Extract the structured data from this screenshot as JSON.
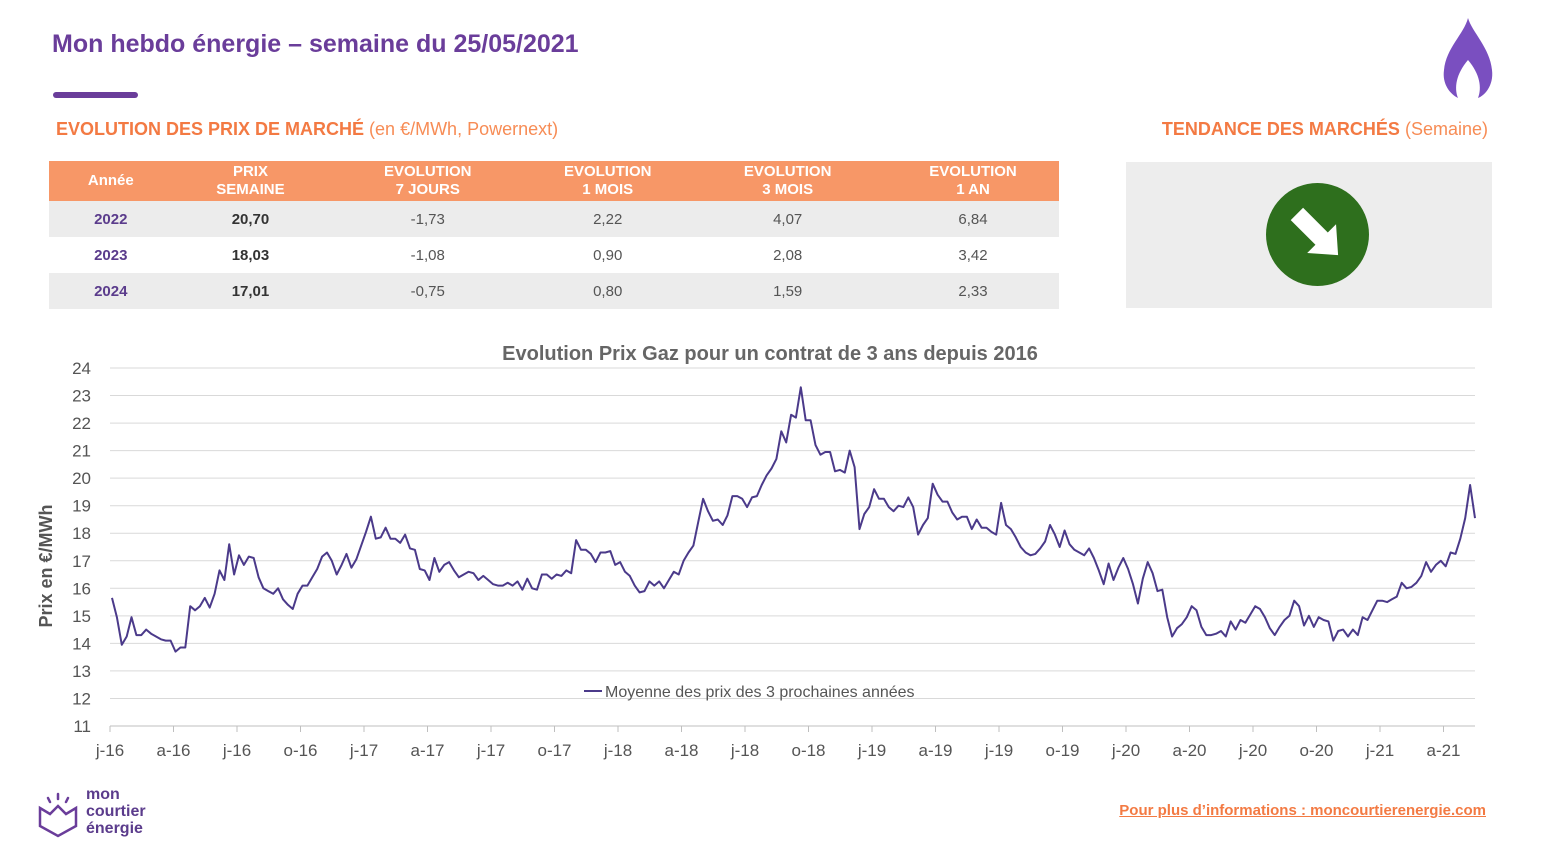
{
  "header": {
    "title": "Mon hebdo énergie – semaine du 25/05/2021",
    "accent_color": "#6a3d9a"
  },
  "section_market": {
    "label_bold": "EVOLUTION DES PRIX DE MARCHÉ",
    "label_sub": "(en €/MWh, Powernext)"
  },
  "section_trend": {
    "label_bold": "TENDANCE DES MARCHÉS",
    "label_sub": "(Semaine)",
    "trend_direction": "down",
    "trend_color": "#2e6f1d"
  },
  "table": {
    "headers": [
      [
        "Année"
      ],
      [
        "PRIX",
        "SEMAINE"
      ],
      [
        "EVOLUTION",
        "7 JOURS"
      ],
      [
        "EVOLUTION",
        "1 MOIS"
      ],
      [
        "EVOLUTION",
        "3 MOIS"
      ],
      [
        "EVOLUTION",
        "1 AN"
      ]
    ],
    "rows": [
      [
        "2022",
        "20,70",
        "-1,73",
        "2,22",
        "4,07",
        "6,84"
      ],
      [
        "2023",
        "18,03",
        "-1,08",
        "0,90",
        "2,08",
        "3,42"
      ],
      [
        "2024",
        "17,01",
        "-0,75",
        "0,80",
        "1,59",
        "2,33"
      ]
    ],
    "header_color": "#f79767"
  },
  "chart_data": {
    "type": "line",
    "title": "Evolution Prix Gaz pour un contrat de 3 ans depuis 2016",
    "ylabel": "Prix en €/MWh",
    "xlabel": "",
    "ylim": [
      11,
      24
    ],
    "yticks": [
      11,
      12,
      13,
      14,
      15,
      16,
      17,
      18,
      19,
      20,
      21,
      22,
      23,
      24
    ],
    "xtick_labels": [
      "j-16",
      "a-16",
      "j-16",
      "o-16",
      "j-17",
      "a-17",
      "j-17",
      "o-17",
      "j-18",
      "a-18",
      "j-18",
      "o-18",
      "j-19",
      "a-19",
      "j-19",
      "o-19",
      "j-20",
      "a-20",
      "j-20",
      "o-20",
      "j-21",
      "a-21"
    ],
    "grid": true,
    "legend_position": "bottom-center",
    "series": [
      {
        "name": "Moyenne des prix des 3 prochaines années",
        "color": "#4b3a8a",
        "values": [
          15.65,
          14.95,
          13.95,
          14.25,
          14.95,
          14.3,
          14.3,
          14.5,
          14.35,
          14.25,
          14.15,
          14.1,
          14.1,
          13.7,
          13.85,
          13.85,
          15.35,
          15.2,
          15.35,
          15.65,
          15.3,
          15.8,
          16.65,
          16.3,
          17.6,
          16.5,
          17.2,
          16.85,
          17.15,
          17.1,
          16.4,
          16.0,
          15.9,
          15.8,
          16.0,
          15.6,
          15.4,
          15.25,
          15.8,
          16.1,
          16.1,
          16.4,
          16.7,
          17.15,
          17.3,
          17.0,
          16.5,
          16.85,
          17.25,
          16.75,
          17.05,
          17.55,
          18.05,
          18.6,
          17.8,
          17.85,
          18.2,
          17.8,
          17.8,
          17.65,
          17.95,
          17.45,
          17.4,
          16.7,
          16.65,
          16.3,
          17.1,
          16.6,
          16.85,
          16.95,
          16.65,
          16.4,
          16.5,
          16.6,
          16.55,
          16.3,
          16.45,
          16.3,
          16.15,
          16.1,
          16.1,
          16.2,
          16.1,
          16.25,
          15.95,
          16.35,
          16.0,
          15.95,
          16.5,
          16.5,
          16.35,
          16.5,
          16.45,
          16.65,
          16.55,
          17.75,
          17.4,
          17.4,
          17.25,
          16.95,
          17.3,
          17.3,
          17.35,
          16.85,
          16.95,
          16.6,
          16.45,
          16.1,
          15.85,
          15.9,
          16.25,
          16.1,
          16.25,
          16.0,
          16.3,
          16.6,
          16.5,
          17.0,
          17.3,
          17.55,
          18.4,
          19.25,
          18.8,
          18.45,
          18.5,
          18.3,
          18.65,
          19.35,
          19.35,
          19.25,
          18.95,
          19.3,
          19.35,
          19.75,
          20.1,
          20.35,
          20.7,
          21.7,
          21.3,
          22.3,
          22.2,
          23.3,
          22.1,
          22.1,
          21.2,
          20.85,
          20.95,
          20.95,
          20.25,
          20.3,
          20.2,
          21.0,
          20.4,
          18.15,
          18.7,
          18.95,
          19.6,
          19.25,
          19.25,
          18.95,
          18.8,
          19.0,
          18.95,
          19.3,
          18.95,
          17.95,
          18.3,
          18.55,
          19.8,
          19.4,
          19.15,
          19.15,
          18.75,
          18.5,
          18.6,
          18.6,
          18.15,
          18.5,
          18.2,
          18.2,
          18.05,
          17.95,
          19.1,
          18.3,
          18.15,
          17.85,
          17.5,
          17.3,
          17.2,
          17.25,
          17.45,
          17.7,
          18.3,
          17.95,
          17.5,
          18.1,
          17.6,
          17.4,
          17.3,
          17.2,
          17.45,
          17.1,
          16.65,
          16.15,
          16.9,
          16.3,
          16.75,
          17.1,
          16.7,
          16.15,
          15.45,
          16.35,
          16.95,
          16.55,
          15.9,
          15.95,
          14.95,
          14.25,
          14.55,
          14.7,
          14.95,
          15.35,
          15.2,
          14.6,
          14.3,
          14.3,
          14.35,
          14.45,
          14.25,
          14.8,
          14.5,
          14.85,
          14.75,
          15.05,
          15.35,
          15.25,
          14.95,
          14.55,
          14.3,
          14.6,
          14.85,
          15.0,
          15.55,
          15.35,
          14.65,
          15.0,
          14.6,
          14.95,
          14.85,
          14.8,
          14.1,
          14.45,
          14.5,
          14.25,
          14.5,
          14.3,
          14.95,
          14.85,
          15.2,
          15.55,
          15.55,
          15.5,
          15.6,
          15.7,
          16.2,
          16.0,
          16.05,
          16.2,
          16.45,
          16.95,
          16.6,
          16.85,
          17.0,
          16.8,
          17.3,
          17.25,
          17.8,
          18.55,
          19.75,
          18.55
        ]
      }
    ]
  },
  "footer": {
    "logo_text": [
      "mon",
      "courtier",
      "énergie"
    ],
    "link_text": "Pour plus d’informations : moncourtierenergie.com"
  }
}
